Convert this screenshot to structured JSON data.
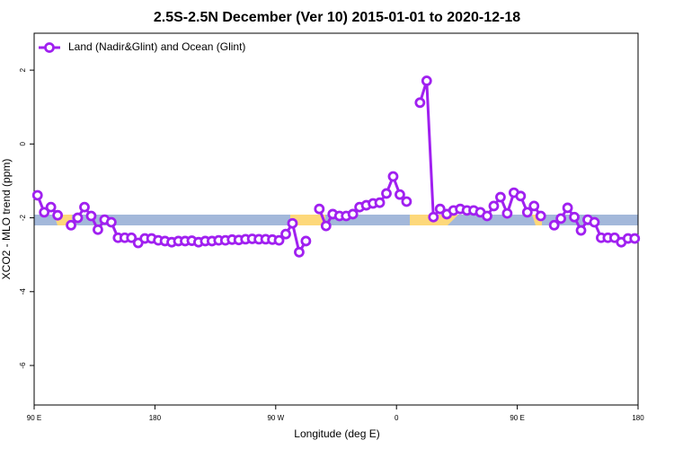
{
  "chart_data": {
    "type": "line",
    "title": "2.5S-2.5N December (Ver 10)   2015-01-01 to 2020-12-18",
    "x_label": "Longitude (deg E)",
    "y_label": "XCO2 - MLO trend (ppm)",
    "xlim": [
      90,
      540
    ],
    "ylim": [
      -7.07,
      3
    ],
    "xticks": [
      {
        "value": 90,
        "label": "90 E"
      },
      180,
      {
        "value": 270,
        "label": "90 W"
      },
      {
        "value": 360,
        "label": "0"
      },
      {
        "value": 450,
        "label": "90 E"
      },
      {
        "value": 540,
        "label": "180"
      }
    ],
    "yticks": [
      -6,
      -4,
      -2,
      0,
      2
    ],
    "legend": "top-left",
    "x": [
      92.5,
      97.5,
      102.5,
      107.5,
      112.5,
      117.5,
      122.5,
      127.5,
      132.5,
      137.5,
      142.5,
      147.5,
      152.5,
      157.5,
      162.5,
      167.5,
      172.5,
      177.5,
      182.5,
      187.5,
      192.5,
      197.5,
      202.5,
      207.5,
      212.5,
      217.5,
      222.5,
      227.5,
      232.5,
      237.5,
      242.5,
      247.5,
      252.5,
      257.5,
      262.5,
      267.5,
      272.5,
      277.5,
      282.5,
      287.5,
      292.5,
      297.5,
      302.5,
      307.5,
      312.5,
      317.5,
      322.5,
      327.5,
      332.5,
      337.5,
      342.5,
      347.5,
      352.5,
      357.5,
      362.5,
      367.5,
      372.5,
      377.5,
      382.5,
      387.5,
      392.5,
      397.5,
      402.5,
      407.5,
      412.5,
      417.5,
      422.5,
      427.5,
      432.5,
      437.5,
      442.5,
      447.5,
      452.5,
      457.5,
      462.5,
      467.5,
      472.5,
      477.5,
      482.5,
      487.5,
      492.5,
      497.5,
      502.5,
      507.5,
      512.5,
      517.5,
      522.5,
      527.5,
      532.5,
      537.5
    ],
    "series": [
      {
        "name": "Land (Nadir&Glint) and Ocean (Glint)",
        "color": "#a020f0",
        "values": [
          -1.39,
          -1.85,
          -1.71,
          -1.93,
          null,
          -2.2,
          -2.0,
          -1.71,
          -1.95,
          -2.32,
          -2.05,
          -2.12,
          -2.54,
          -2.54,
          -2.54,
          -2.68,
          -2.56,
          -2.56,
          -2.61,
          -2.63,
          -2.66,
          -2.63,
          -2.63,
          -2.62,
          -2.66,
          -2.63,
          -2.63,
          -2.61,
          -2.61,
          -2.59,
          -2.6,
          -2.58,
          -2.57,
          -2.58,
          -2.58,
          -2.59,
          -2.61,
          -2.44,
          -2.15,
          -2.93,
          -2.63,
          null,
          -1.76,
          -2.22,
          -1.9,
          -1.95,
          -1.95,
          -1.9,
          -1.71,
          -1.66,
          -1.61,
          -1.59,
          -1.34,
          -0.88,
          -1.37,
          -1.56,
          null,
          1.12,
          1.71,
          -1.98,
          -1.76,
          -1.9,
          -1.8,
          -1.76,
          -1.8,
          -1.8,
          -1.85,
          -1.95,
          -1.68,
          -1.44,
          -1.88,
          -1.32,
          -1.41,
          -1.85,
          -1.68,
          -1.95,
          null,
          -2.2,
          -2.02,
          -1.73,
          -1.98,
          -2.34,
          -2.05,
          -2.12,
          -2.54,
          -2.54,
          -2.54,
          -2.66,
          -2.56,
          -2.56
        ]
      }
    ]
  }
}
